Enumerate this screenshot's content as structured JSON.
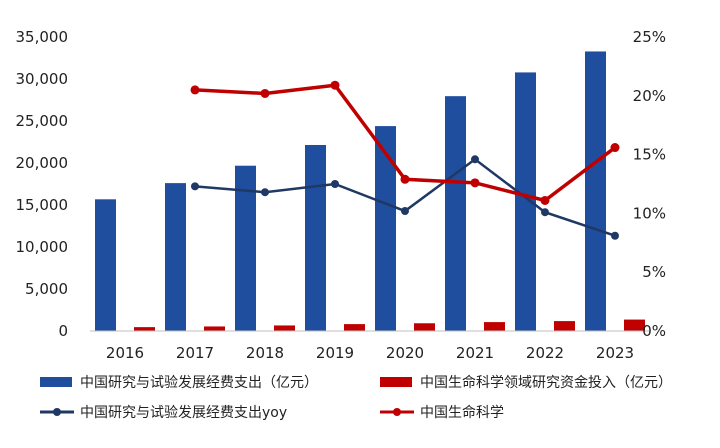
{
  "chart_data": {
    "type": "bar+line",
    "categories": [
      "2016",
      "2017",
      "2018",
      "2019",
      "2020",
      "2021",
      "2022",
      "2023"
    ],
    "left_axis": {
      "ylim": [
        0,
        35000
      ],
      "ticks": [
        "0",
        "5,000",
        "10,000",
        "15,000",
        "20,000",
        "25,000",
        "30,000",
        "35,000"
      ]
    },
    "right_axis": {
      "ylim": [
        0,
        25
      ],
      "ticks": [
        "0%",
        "5%",
        "10%",
        "15%",
        "20%",
        "25%"
      ]
    },
    "series": [
      {
        "name": "中国研究与试验发展经费支出（亿元）",
        "kind": "bar",
        "axis": "left",
        "color": "#1f4e9e",
        "values": [
          15677,
          17606,
          19678,
          22144,
          24393,
          27956,
          30783,
          33279
        ]
      },
      {
        "name": "中国生命科学领域研究资金投入（亿元）",
        "kind": "bar",
        "axis": "left",
        "color": "#c00000",
        "values": [
          460,
          540,
          660,
          820,
          920,
          1060,
          1180,
          1360
        ]
      },
      {
        "name": "中国研究与试验发展经费支出yoy",
        "kind": "line",
        "axis": "right",
        "color": "#1f3864",
        "values": [
          null,
          12.3,
          11.8,
          12.5,
          10.2,
          14.6,
          10.1,
          8.1
        ]
      },
      {
        "name": "中国生命科学",
        "kind": "line",
        "axis": "right",
        "color": "#c00000",
        "values": [
          null,
          20.5,
          20.2,
          20.9,
          12.9,
          12.6,
          11.1,
          15.6
        ]
      }
    ],
    "grid": false,
    "legend_position": "bottom"
  }
}
